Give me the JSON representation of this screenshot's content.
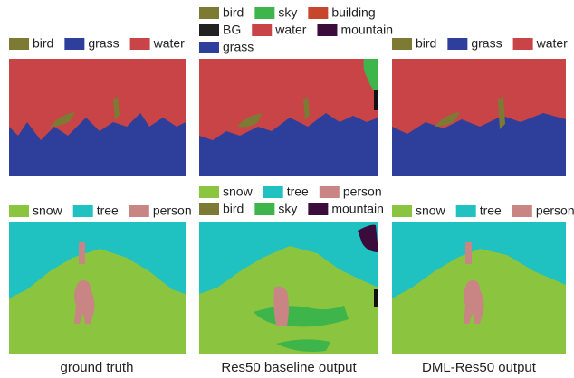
{
  "panels": [
    {
      "legend_rows": [
        [
          {
            "label": "bird",
            "color": "#7d7a34"
          },
          {
            "label": "grass",
            "color": "#2e3f9b"
          },
          {
            "label": "water",
            "color": "#c84447"
          }
        ]
      ]
    },
    {
      "legend_rows": [
        [
          {
            "label": "bird",
            "color": "#7d7a34"
          },
          {
            "label": "sky",
            "color": "#3db54a"
          },
          {
            "label": "building",
            "color": "#c6462e"
          }
        ],
        [
          {
            "label": "BG",
            "color": "#222222"
          },
          {
            "label": "water",
            "color": "#c84447"
          },
          {
            "label": "mountain",
            "color": "#3b0b3b"
          }
        ],
        [
          {
            "label": "grass",
            "color": "#2e3f9b"
          }
        ]
      ]
    },
    {
      "legend_rows": [
        [
          {
            "label": "bird",
            "color": "#7d7a34"
          },
          {
            "label": "grass",
            "color": "#2e3f9b"
          },
          {
            "label": "water",
            "color": "#c84447"
          }
        ]
      ]
    },
    {
      "legend_rows": [
        [
          {
            "label": "snow",
            "color": "#8bc43f"
          },
          {
            "label": "tree",
            "color": "#1fc1c1"
          },
          {
            "label": "person",
            "color": "#c88584"
          }
        ]
      ]
    },
    {
      "legend_rows": [
        [
          {
            "label": "snow",
            "color": "#8bc43f"
          },
          {
            "label": "tree",
            "color": "#1fc1c1"
          },
          {
            "label": "person",
            "color": "#c88584"
          }
        ],
        [
          {
            "label": "bird",
            "color": "#7d7a34"
          },
          {
            "label": "sky",
            "color": "#3db54a"
          },
          {
            "label": "mountain",
            "color": "#3b0b3b"
          }
        ]
      ]
    },
    {
      "legend_rows": [
        [
          {
            "label": "snow",
            "color": "#8bc43f"
          },
          {
            "label": "tree",
            "color": "#1fc1c1"
          },
          {
            "label": "person",
            "color": "#c88584"
          }
        ]
      ]
    }
  ],
  "captions": [
    "ground truth",
    "Res50 baseline output",
    "DML-Res50 output"
  ]
}
